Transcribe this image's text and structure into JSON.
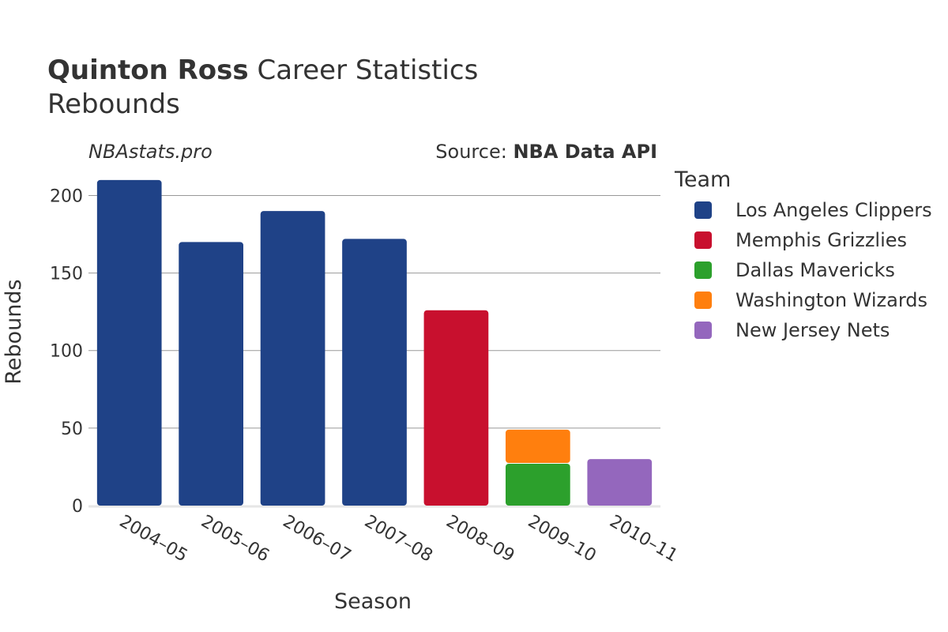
{
  "title": {
    "bold": "Quinton Ross",
    "rest": " Career Statistics",
    "line2": "Rebounds"
  },
  "watermark": "NBAstats.pro",
  "source": {
    "prefix": "Source: ",
    "name": "NBA Data API"
  },
  "legend": {
    "title": "Team"
  },
  "colors": {
    "grid": "#999999",
    "text": "#333333"
  },
  "chart_data": {
    "type": "bar",
    "stacked": true,
    "xlabel": "Season",
    "ylabel": "Rebounds",
    "ylim": [
      0,
      215
    ],
    "yticks": [
      0,
      50,
      100,
      150,
      200
    ],
    "grid": true,
    "legend_position": "right",
    "categories": [
      "2004–05",
      "2005–06",
      "2006–07",
      "2007–08",
      "2008–09",
      "2009–10",
      "2010–11"
    ],
    "series": [
      {
        "name": "Los Angeles Clippers",
        "color": "#1f4287",
        "values": [
          210,
          170,
          190,
          172,
          0,
          0,
          0
        ]
      },
      {
        "name": "Memphis Grizzlies",
        "color": "#c8102e",
        "values": [
          0,
          0,
          0,
          0,
          126,
          0,
          0
        ]
      },
      {
        "name": "Dallas Mavericks",
        "color": "#2ca02c",
        "values": [
          0,
          0,
          0,
          0,
          0,
          27,
          0
        ]
      },
      {
        "name": "Washington Wizards",
        "color": "#ff7f0e",
        "values": [
          0,
          0,
          0,
          0,
          0,
          22,
          0
        ]
      },
      {
        "name": "New Jersey Nets",
        "color": "#9467bd",
        "values": [
          0,
          0,
          0,
          0,
          0,
          0,
          30
        ]
      }
    ]
  }
}
